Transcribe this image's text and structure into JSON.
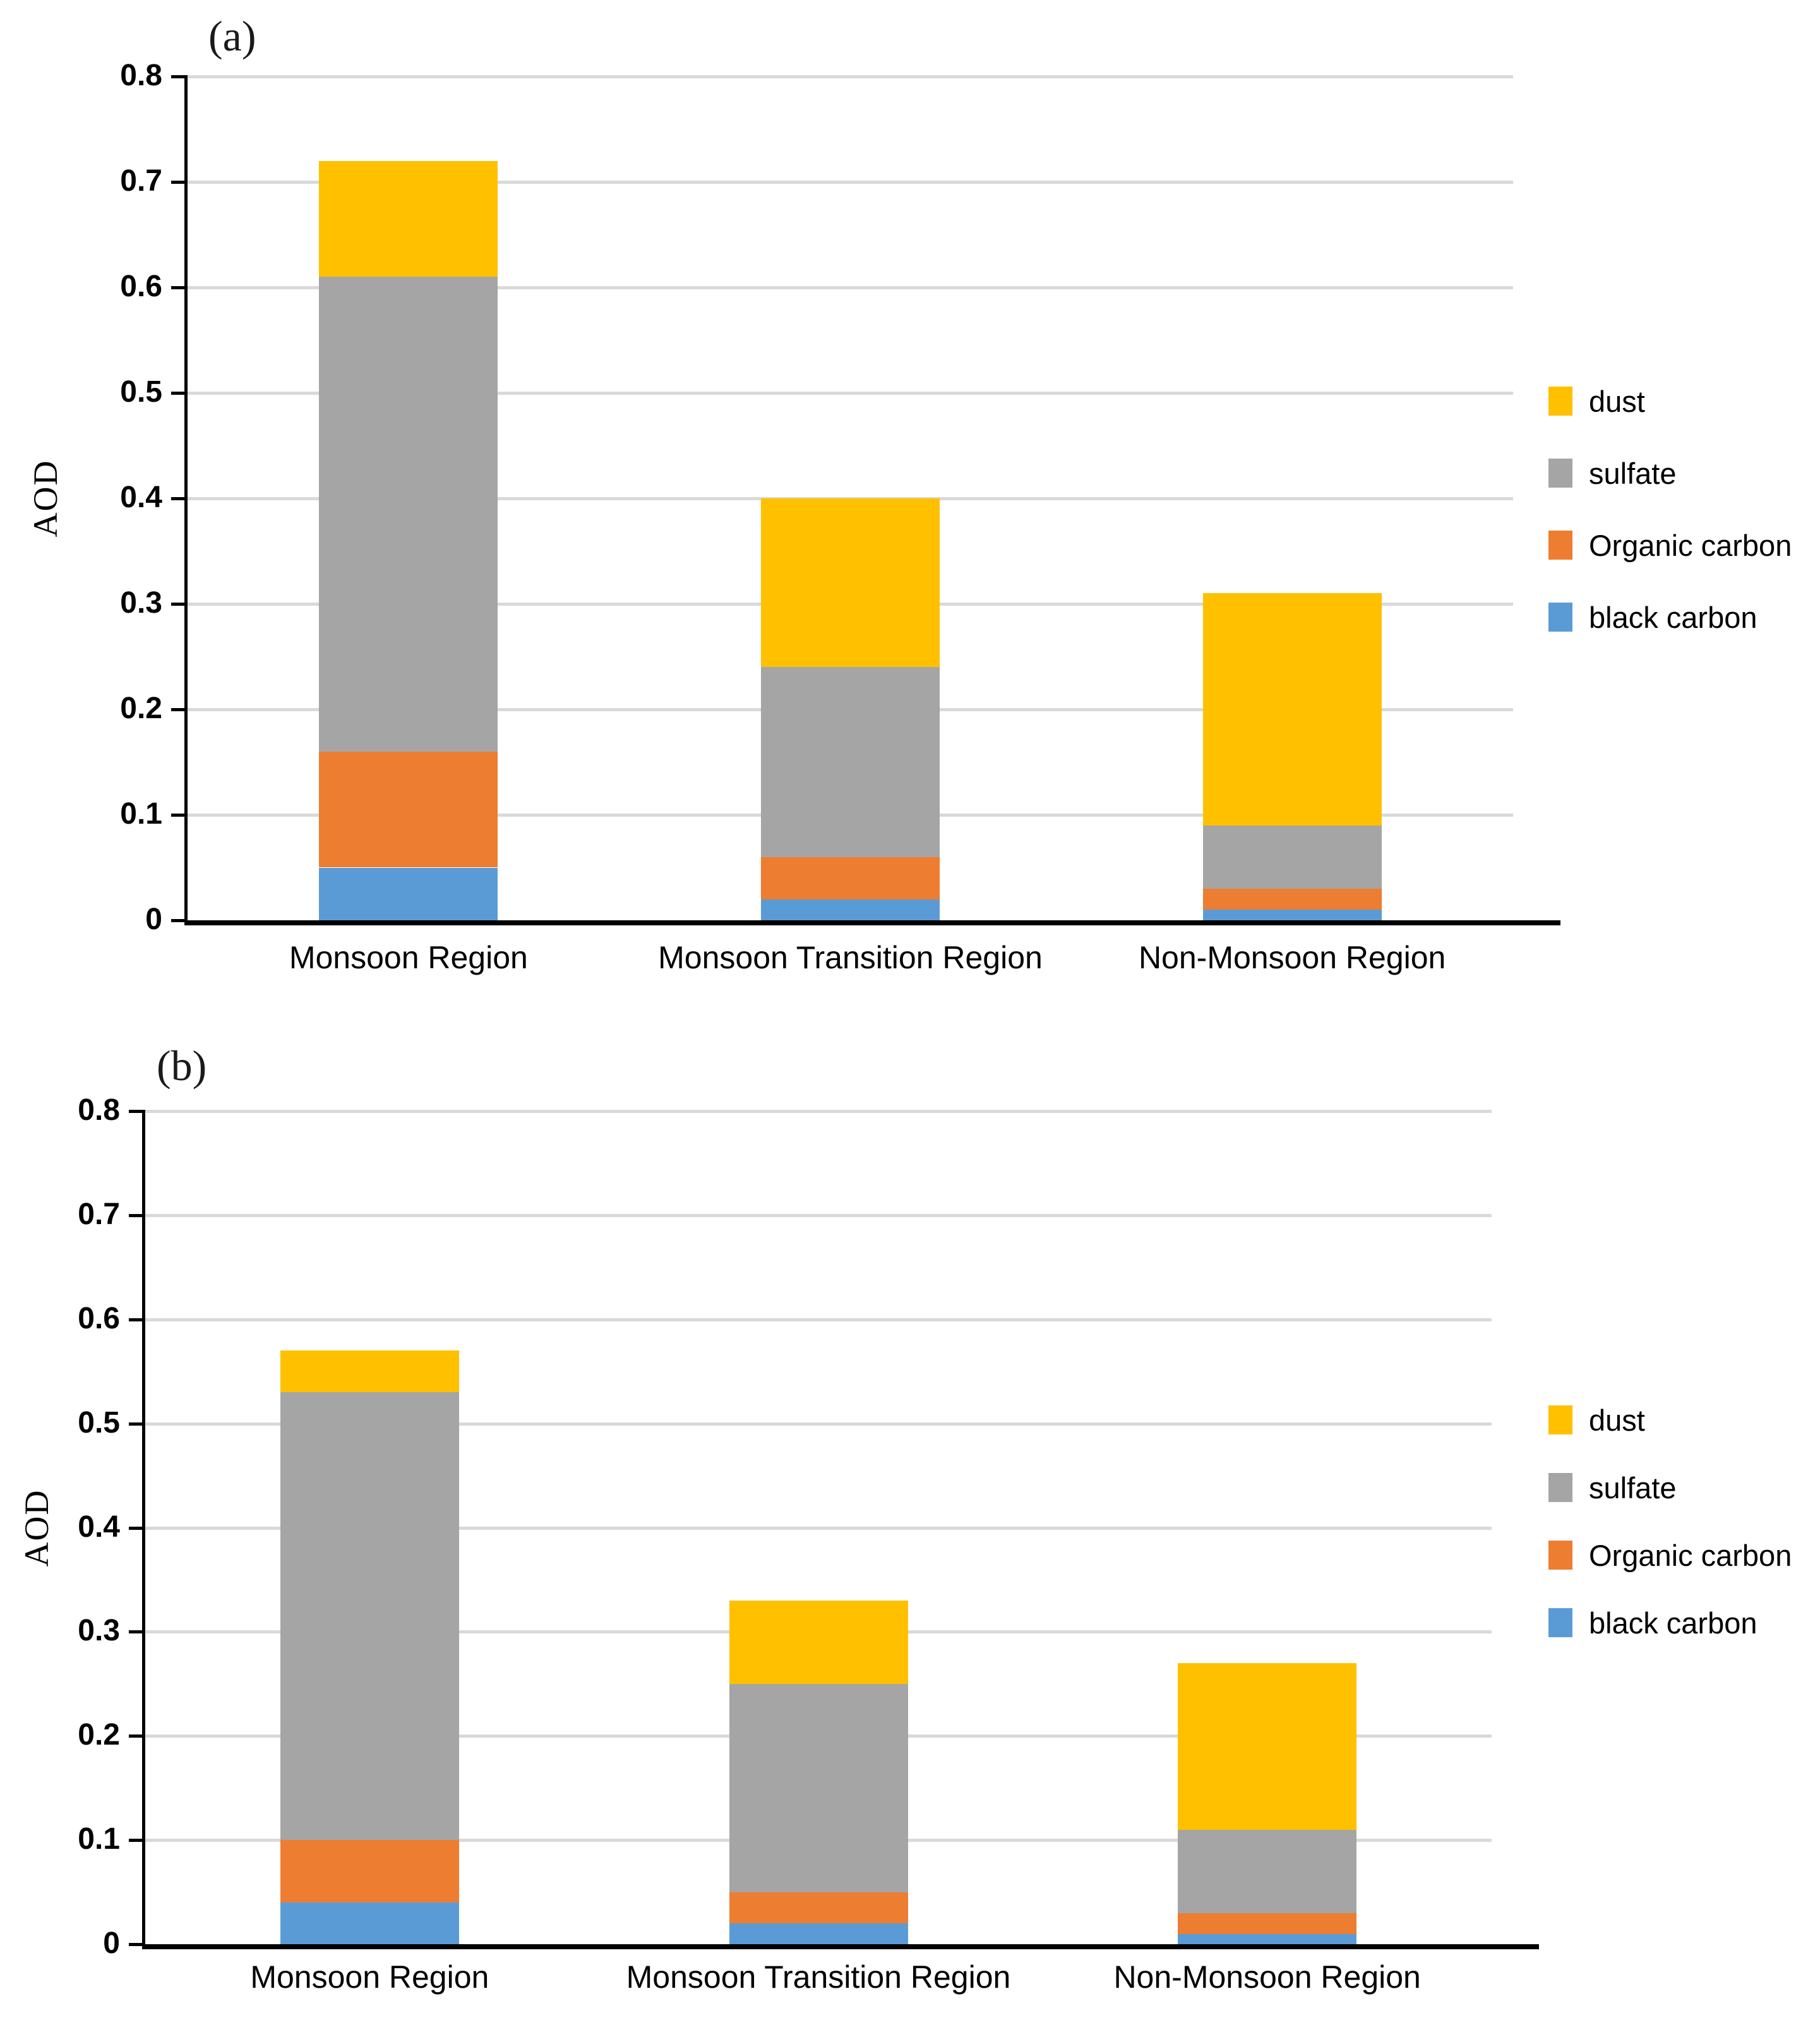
{
  "figure": {
    "description_visible_text_only": "",
    "panel_labels": [
      "(a)",
      "(b)"
    ]
  },
  "chart_data": [
    {
      "type": "bar",
      "stacked": true,
      "panel_label": "(a)",
      "title": "",
      "xlabel": "",
      "ylabel": "AOD",
      "ylim": [
        0,
        0.8
      ],
      "yticks": [
        "0.8",
        "0.7",
        "0.6",
        "0.5",
        "0.4",
        "0.3",
        "0.2",
        "0.1",
        "0"
      ],
      "grid": true,
      "legend_position": "right",
      "categories": [
        "Monsoon Region",
        "Monsoon Transition Region",
        "Non-Monsoon Region"
      ],
      "series": [
        {
          "name": "black carbon",
          "color": "#5B9BD5",
          "values": [
            0.05,
            0.02,
            0.01
          ]
        },
        {
          "name": "Organic carbon",
          "color": "#ED7D31",
          "values": [
            0.11,
            0.04,
            0.02
          ]
        },
        {
          "name": "sulfate",
          "color": "#A5A5A5",
          "values": [
            0.45,
            0.18,
            0.06
          ]
        },
        {
          "name": "dust",
          "color": "#FFC000",
          "values": [
            0.11,
            0.16,
            0.22
          ]
        }
      ],
      "stack_totals": [
        0.72,
        0.4,
        0.31
      ],
      "legend": [
        "dust",
        "sulfate",
        "Organic carbon",
        "black carbon"
      ]
    },
    {
      "type": "bar",
      "stacked": true,
      "panel_label": "(b)",
      "title": "",
      "xlabel": "",
      "ylabel": "AOD",
      "ylim": [
        0,
        0.8
      ],
      "yticks": [
        "0.8",
        "0.7",
        "0.6",
        "0.5",
        "0.4",
        "0.3",
        "0.2",
        "0.1",
        "0"
      ],
      "grid": true,
      "legend_position": "right",
      "categories": [
        "Monsoon Region",
        "Monsoon Transition Region",
        "Non-Monsoon Region"
      ],
      "series": [
        {
          "name": "black carbon",
          "color": "#5B9BD5",
          "values": [
            0.04,
            0.02,
            0.01
          ]
        },
        {
          "name": "Organic carbon",
          "color": "#ED7D31",
          "values": [
            0.06,
            0.03,
            0.02
          ]
        },
        {
          "name": "sulfate",
          "color": "#A5A5A5",
          "values": [
            0.43,
            0.2,
            0.08
          ]
        },
        {
          "name": "dust",
          "color": "#FFC000",
          "values": [
            0.04,
            0.08,
            0.16
          ]
        }
      ],
      "stack_totals": [
        0.57,
        0.33,
        0.27
      ],
      "legend": [
        "dust",
        "sulfate",
        "Organic carbon",
        "black carbon"
      ]
    }
  ],
  "colors": {
    "dust": "#FFC000",
    "sulfate": "#A5A5A5",
    "organic_carbon": "#ED7D31",
    "black_carbon": "#5B9BD5",
    "gridline": "#D9D9D9",
    "axis": "#000000",
    "background": "#FFFFFF"
  }
}
